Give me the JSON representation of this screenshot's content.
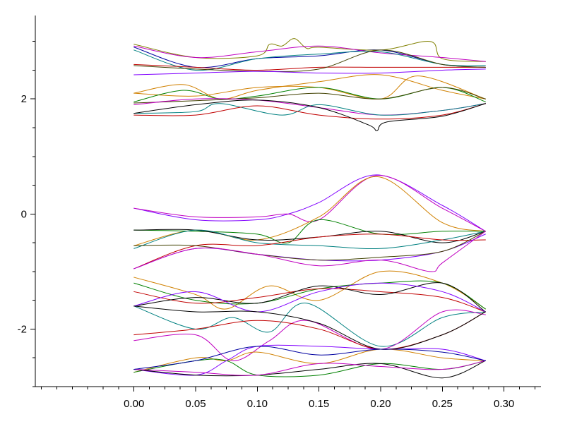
{
  "chart_data": {
    "type": "line",
    "title": "",
    "xlabel": "",
    "ylabel": "",
    "xlim": [
      -0.08,
      0.33
    ],
    "ylim": [
      -3.0,
      3.45
    ],
    "xticks": [
      0.0,
      0.05,
      0.1,
      0.15,
      0.2,
      0.25,
      0.3
    ],
    "xtick_labels": [
      "0.00",
      "0.05",
      "0.10",
      "0.15",
      "0.20",
      "0.25",
      "0.30"
    ],
    "yticks": [
      -2,
      0,
      2
    ],
    "ytick_labels": [
      "-2",
      "0",
      "2"
    ],
    "y_minor_step": 0.5,
    "x_minor_step": 0.0125,
    "grid": false,
    "legend": "none",
    "series": [
      {
        "color": "#0000a0",
        "x": [
          0.0,
          0.05,
          0.1,
          0.15,
          0.2,
          0.25,
          0.285
        ],
        "y": [
          2.9,
          2.55,
          2.7,
          2.75,
          2.85,
          2.6,
          2.55
        ]
      },
      {
        "color": "#808000",
        "x": [
          0.0,
          0.05,
          0.1,
          0.11,
          0.12,
          0.13,
          0.14,
          0.15,
          0.2,
          0.24,
          0.25,
          0.285
        ],
        "y": [
          2.95,
          2.72,
          2.75,
          2.95,
          2.92,
          3.05,
          2.88,
          2.9,
          2.85,
          3.0,
          2.7,
          2.65
        ]
      },
      {
        "color": "#c000c0",
        "x": [
          0.0,
          0.05,
          0.1,
          0.15,
          0.2,
          0.25,
          0.285
        ],
        "y": [
          2.92,
          2.72,
          2.82,
          2.92,
          2.8,
          2.72,
          2.65
        ]
      },
      {
        "color": "#008080",
        "x": [
          0.0,
          0.05,
          0.1,
          0.15,
          0.2,
          0.25,
          0.285
        ],
        "y": [
          2.85,
          2.5,
          2.7,
          2.78,
          2.82,
          2.6,
          2.58
        ]
      },
      {
        "color": "#c00000",
        "x": [
          0.0,
          0.05,
          0.1,
          0.15,
          0.2,
          0.25,
          0.285
        ],
        "y": [
          2.6,
          2.55,
          2.5,
          2.55,
          2.55,
          2.55,
          2.55
        ]
      },
      {
        "color": "#404000",
        "x": [
          0.0,
          0.05,
          0.1,
          0.15,
          0.2,
          0.25,
          0.285
        ],
        "y": [
          2.58,
          2.52,
          2.48,
          2.52,
          2.85,
          2.6,
          2.55
        ]
      },
      {
        "color": "#8000ff",
        "x": [
          0.0,
          0.05,
          0.1,
          0.15,
          0.2,
          0.25,
          0.285
        ],
        "y": [
          2.42,
          2.45,
          2.48,
          2.45,
          2.45,
          2.5,
          2.52
        ]
      },
      {
        "color": "#d08000",
        "x": [
          0.0,
          0.04,
          0.07,
          0.1,
          0.15,
          0.2,
          0.25,
          0.285
        ],
        "y": [
          2.1,
          2.25,
          2.0,
          2.15,
          2.3,
          2.42,
          2.15,
          2.0
        ]
      },
      {
        "color": "#d08000",
        "x": [
          0.0,
          0.05,
          0.1,
          0.15,
          0.2,
          0.23,
          0.285
        ],
        "y": [
          2.1,
          2.05,
          2.2,
          2.2,
          2.0,
          2.4,
          2.0
        ]
      },
      {
        "color": "#008000",
        "x": [
          0.0,
          0.04,
          0.07,
          0.1,
          0.15,
          0.2,
          0.25,
          0.285
        ],
        "y": [
          1.95,
          2.15,
          2.0,
          2.05,
          2.2,
          2.0,
          2.2,
          1.95
        ]
      },
      {
        "color": "#404000",
        "x": [
          0.0,
          0.05,
          0.1,
          0.15,
          0.2,
          0.25,
          0.285
        ],
        "y": [
          1.93,
          1.97,
          2.02,
          2.1,
          2.0,
          2.2,
          2.0
        ]
      },
      {
        "color": "#c000c0",
        "x": [
          0.0,
          0.05,
          0.1,
          0.15,
          0.2,
          0.25,
          0.285
        ],
        "y": [
          1.9,
          2.0,
          1.98,
          1.85,
          1.72,
          1.8,
          1.92
        ]
      },
      {
        "color": "#008080",
        "x": [
          0.0,
          0.05,
          0.07,
          0.12,
          0.15,
          0.2,
          0.25,
          0.285
        ],
        "y": [
          1.75,
          1.78,
          1.92,
          1.72,
          1.9,
          1.72,
          1.8,
          1.92
        ]
      },
      {
        "color": "#c00000",
        "x": [
          0.0,
          0.05,
          0.1,
          0.15,
          0.2,
          0.25,
          0.285
        ],
        "y": [
          1.72,
          1.72,
          1.88,
          1.72,
          1.65,
          1.72,
          1.92
        ]
      },
      {
        "color": "#000000",
        "x": [
          0.0,
          0.05,
          0.1,
          0.15,
          0.19,
          0.197,
          0.205,
          0.25,
          0.285
        ],
        "y": [
          1.75,
          1.9,
          1.98,
          1.85,
          1.55,
          1.45,
          1.6,
          1.7,
          1.92
        ]
      },
      {
        "color": "#8000ff",
        "x": [
          0.0,
          0.05,
          0.1,
          0.125,
          0.15,
          0.197,
          0.25,
          0.285
        ],
        "y": [
          0.1,
          -0.1,
          -0.1,
          0.0,
          0.2,
          0.68,
          0.15,
          -0.3
        ]
      },
      {
        "color": "#c000c0",
        "x": [
          0.0,
          0.05,
          0.1,
          0.125,
          0.15,
          0.197,
          0.25,
          0.285
        ],
        "y": [
          0.1,
          -0.05,
          -0.05,
          0.0,
          -0.1,
          0.67,
          0.1,
          -0.3
        ]
      },
      {
        "color": "#d08000",
        "x": [
          0.0,
          0.05,
          0.1,
          0.15,
          0.197,
          0.25,
          0.285
        ],
        "y": [
          -0.55,
          -0.28,
          -0.45,
          -0.05,
          0.65,
          -0.15,
          -0.3
        ]
      },
      {
        "color": "#008000",
        "x": [
          0.0,
          0.05,
          0.1,
          0.125,
          0.15,
          0.2,
          0.25,
          0.285
        ],
        "y": [
          -0.28,
          -0.3,
          -0.35,
          -0.5,
          -0.1,
          -0.35,
          -0.3,
          -0.3
        ]
      },
      {
        "color": "#000000",
        "x": [
          0.0,
          0.05,
          0.1,
          0.15,
          0.2,
          0.25,
          0.285
        ],
        "y": [
          -0.28,
          -0.28,
          -0.45,
          -0.4,
          -0.3,
          -0.5,
          -0.3
        ]
      },
      {
        "color": "#008080",
        "x": [
          0.0,
          0.05,
          0.1,
          0.15,
          0.2,
          0.25,
          0.285
        ],
        "y": [
          -0.6,
          -0.28,
          -0.5,
          -0.55,
          -0.6,
          -0.45,
          -0.3
        ]
      },
      {
        "color": "#c00000",
        "x": [
          0.0,
          0.05,
          0.1,
          0.15,
          0.2,
          0.25,
          0.285
        ],
        "y": [
          -0.95,
          -0.55,
          -0.55,
          -0.4,
          -0.35,
          -0.45,
          -0.45
        ]
      },
      {
        "color": "#8000ff",
        "x": [
          0.0,
          0.05,
          0.1,
          0.15,
          0.2,
          0.25,
          0.285
        ],
        "y": [
          -0.95,
          -0.6,
          -0.7,
          -0.8,
          -0.8,
          -0.65,
          -0.35
        ]
      },
      {
        "color": "#404000",
        "x": [
          0.0,
          0.05,
          0.1,
          0.15,
          0.2,
          0.25,
          0.285
        ],
        "y": [
          -0.55,
          -0.55,
          -0.7,
          -0.8,
          -0.75,
          -0.65,
          -0.3
        ]
      },
      {
        "color": "#c000c0",
        "x": [
          0.0,
          0.05,
          0.1,
          0.15,
          0.2,
          0.24,
          0.25,
          0.285
        ],
        "y": [
          -0.95,
          -0.6,
          -0.7,
          -0.9,
          -0.8,
          -1.0,
          -0.85,
          -0.3
        ]
      },
      {
        "color": "#d08000",
        "x": [
          0.0,
          0.05,
          0.075,
          0.11,
          0.15,
          0.2,
          0.25,
          0.285
        ],
        "y": [
          -1.1,
          -1.4,
          -1.65,
          -1.25,
          -1.5,
          -1.0,
          -1.2,
          -1.65
        ]
      },
      {
        "color": "#008000",
        "x": [
          0.0,
          0.05,
          0.1,
          0.15,
          0.2,
          0.25,
          0.285
        ],
        "y": [
          -1.2,
          -1.5,
          -1.55,
          -1.3,
          -1.2,
          -1.2,
          -1.65
        ]
      },
      {
        "color": "#c00000",
        "x": [
          0.0,
          0.05,
          0.1,
          0.15,
          0.2,
          0.25,
          0.285
        ],
        "y": [
          -1.35,
          -1.55,
          -1.45,
          -1.3,
          -1.35,
          -1.45,
          -1.7
        ]
      },
      {
        "color": "#000000",
        "x": [
          0.0,
          0.05,
          0.1,
          0.15,
          0.2,
          0.25,
          0.285
        ],
        "y": [
          -1.6,
          -1.45,
          -1.55,
          -1.25,
          -1.4,
          -1.2,
          -1.7
        ]
      },
      {
        "color": "#8000ff",
        "x": [
          0.0,
          0.05,
          0.1,
          0.15,
          0.2,
          0.25,
          0.285
        ],
        "y": [
          -1.6,
          -1.35,
          -1.7,
          -1.35,
          -1.2,
          -1.35,
          -1.7
        ]
      },
      {
        "color": "#008080",
        "x": [
          0.0,
          0.05,
          0.08,
          0.11,
          0.14,
          0.2,
          0.25,
          0.285
        ],
        "y": [
          -1.6,
          -2.0,
          -1.8,
          -2.05,
          -1.55,
          -2.3,
          -1.8,
          -1.7
        ]
      },
      {
        "color": "#c000c0",
        "x": [
          0.0,
          0.05,
          0.08,
          0.11,
          0.14,
          0.2,
          0.25,
          0.285
        ],
        "y": [
          -2.2,
          -2.1,
          -2.55,
          -2.2,
          -1.85,
          -2.35,
          -1.7,
          -1.75
        ]
      },
      {
        "color": "#c00000",
        "x": [
          0.0,
          0.05,
          0.1,
          0.15,
          0.2,
          0.25,
          0.285
        ],
        "y": [
          -2.1,
          -2.0,
          -1.85,
          -2.0,
          -2.35,
          -2.1,
          -1.7
        ]
      },
      {
        "color": "#000000",
        "x": [
          0.0,
          0.05,
          0.1,
          0.15,
          0.2,
          0.25,
          0.285
        ],
        "y": [
          -1.6,
          -1.7,
          -1.7,
          -1.9,
          -2.35,
          -2.1,
          -1.7
        ]
      },
      {
        "color": "#d08000",
        "x": [
          0.0,
          0.05,
          0.075,
          0.1,
          0.15,
          0.2,
          0.25,
          0.285
        ],
        "y": [
          -2.75,
          -2.5,
          -2.55,
          -2.4,
          -2.6,
          -2.35,
          -2.5,
          -2.55
        ]
      },
      {
        "color": "#008000",
        "x": [
          0.0,
          0.05,
          0.075,
          0.1,
          0.15,
          0.2,
          0.25,
          0.285
        ],
        "y": [
          -2.75,
          -2.55,
          -2.55,
          -2.8,
          -2.8,
          -2.6,
          -2.7,
          -2.55
        ]
      },
      {
        "color": "#8000ff",
        "x": [
          0.0,
          0.05,
          0.075,
          0.1,
          0.15,
          0.2,
          0.25,
          0.285
        ],
        "y": [
          -2.7,
          -2.8,
          -2.55,
          -2.3,
          -2.3,
          -2.35,
          -2.35,
          -2.55
        ]
      },
      {
        "color": "#000000",
        "x": [
          0.0,
          0.05,
          0.1,
          0.15,
          0.2,
          0.25,
          0.285
        ],
        "y": [
          -2.7,
          -2.8,
          -2.8,
          -2.7,
          -2.6,
          -2.85,
          -2.55
        ]
      },
      {
        "color": "#c000c0",
        "x": [
          0.0,
          0.05,
          0.1,
          0.15,
          0.2,
          0.25,
          0.285
        ],
        "y": [
          -2.7,
          -2.75,
          -2.8,
          -2.6,
          -2.65,
          -2.7,
          -2.55
        ]
      },
      {
        "color": "#0000a0",
        "x": [
          0.0,
          0.05,
          0.1,
          0.15,
          0.2,
          0.25,
          0.285
        ],
        "y": [
          -2.7,
          -2.55,
          -2.3,
          -2.45,
          -2.35,
          -2.4,
          -2.55
        ]
      }
    ]
  }
}
